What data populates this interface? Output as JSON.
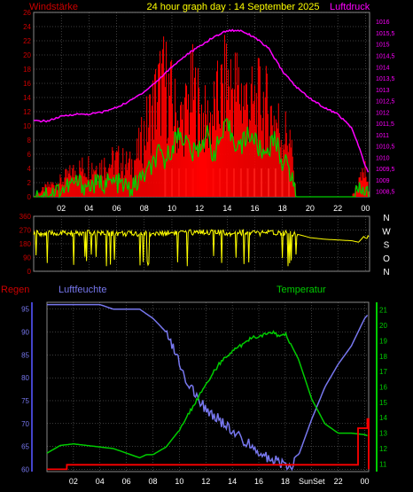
{
  "header": {
    "left_label": "Windstärke",
    "title": "24 hour graph day : 14 September 2025",
    "right_label": "Luftdruck"
  },
  "colors": {
    "wind_gust": "#ff0000",
    "wind_avg": "#00cc00",
    "pressure": "#ff00ff",
    "direction": "#ffff00",
    "humidity": "#7777ee",
    "temperature": "#00cc00",
    "rain": "#ff0000",
    "sun": "#ccffcc",
    "grid": "#999999",
    "axis_label": "#cc0000",
    "right_axis_label": "#ff00ff",
    "temp_axis_label": "#00cc00",
    "hum_axis_label": "#7777ee"
  },
  "chart_data": [
    {
      "type": "line",
      "title": "24 hour graph day : 14 September 2025",
      "ylabel": "Windstärke",
      "y2label": "Luftdruck",
      "xlim": [
        0,
        24.3
      ],
      "ylim": [
        0,
        26
      ],
      "y2lim": [
        1008.25,
        1016.4
      ],
      "x_ticks": [
        "02",
        "04",
        "06",
        "08",
        "10",
        "12",
        "14",
        "16",
        "18",
        "20",
        "22",
        "00"
      ],
      "x_tick_hours": [
        2,
        4,
        6,
        8,
        10,
        12,
        14,
        16,
        18,
        20,
        22,
        24
      ],
      "y_ticks": [
        0,
        2,
        4,
        6,
        8,
        10,
        12,
        14,
        16,
        18,
        20,
        22,
        24,
        26
      ],
      "y2_ticks": [
        "1008,5",
        "1009",
        "1009,5",
        "1010",
        "1010,5",
        "1011",
        "1011,5",
        "1012",
        "1012,5",
        "1013",
        "1013,5",
        "1014",
        "1014,5",
        "1015",
        "1015,5",
        "1016"
      ],
      "grid": true,
      "series": [
        {
          "name": "Windstärke",
          "style": "gust-bars",
          "x": [
            0,
            1,
            2,
            3,
            4,
            5,
            6,
            7,
            7.5,
            8,
            8.5,
            9,
            9.5,
            10,
            10.5,
            11,
            11.5,
            12,
            12.5,
            13,
            13.5,
            14,
            14.5,
            15,
            15.5,
            16,
            16.5,
            17,
            17.5,
            18,
            18.5,
            19,
            20,
            21,
            22,
            23,
            24,
            24.3
          ],
          "values": [
            0,
            2,
            3,
            5,
            6,
            6,
            7,
            6,
            8,
            12,
            16,
            20,
            22,
            18,
            14,
            16,
            20,
            17,
            14,
            16,
            19,
            22,
            21,
            20,
            18,
            17,
            19,
            16,
            15,
            12,
            12,
            0,
            0,
            0,
            0,
            0,
            5,
            0
          ]
        },
        {
          "name": "Wind avg",
          "x": [
            0,
            1,
            2,
            3,
            4,
            5,
            6,
            7,
            7.5,
            8,
            8.5,
            9,
            9.5,
            10,
            10.5,
            11,
            11.5,
            12,
            12.5,
            13,
            13.5,
            14,
            14.5,
            15,
            15.5,
            16,
            16.5,
            17,
            17.5,
            18,
            18.5,
            19,
            20,
            21,
            22,
            23,
            24,
            24.3
          ],
          "values": [
            0,
            0.5,
            1,
            2,
            1.5,
            2,
            2,
            1,
            2,
            3,
            4,
            6,
            5,
            7,
            9,
            8,
            6,
            7,
            9,
            6,
            8,
            10,
            8,
            7,
            9,
            8,
            6,
            7,
            8,
            5,
            4,
            0,
            0,
            0,
            0,
            0,
            1,
            0
          ]
        },
        {
          "name": "Luftdruck",
          "axis": "right",
          "x": [
            0,
            1,
            2,
            3,
            4,
            5,
            6,
            7,
            8,
            9,
            10,
            11,
            12,
            13,
            14,
            15,
            16,
            17,
            18,
            19,
            20,
            21,
            22,
            23,
            23.5,
            24,
            24.3
          ],
          "values": [
            1011.6,
            1011.6,
            1011.8,
            1011.9,
            1011.9,
            1012.0,
            1012.2,
            1012.5,
            1012.9,
            1013.4,
            1014.0,
            1014.5,
            1014.9,
            1015.3,
            1015.6,
            1015.6,
            1015.3,
            1014.8,
            1013.8,
            1013.1,
            1012.6,
            1012.2,
            1011.9,
            1011.3,
            1010.5,
            1009.6,
            1009.2
          ]
        },
        {
          "name": "Sonne",
          "style": "sun-bars",
          "x": [
            9.5,
            10,
            10.5,
            11,
            11.5,
            12,
            12.5,
            13,
            13.5,
            14,
            14.5,
            15,
            15.5,
            16,
            16.5,
            17,
            17.5,
            18,
            18.5
          ],
          "values": [
            4,
            4,
            4,
            4,
            4,
            4,
            4,
            4,
            4,
            4,
            4,
            4,
            4,
            4,
            4,
            4,
            4,
            4,
            4
          ]
        }
      ]
    },
    {
      "type": "line",
      "ylim": [
        0,
        360
      ],
      "y_ticks": [
        0,
        90,
        180,
        270,
        360
      ],
      "right_labels": [
        "N",
        "W",
        "S",
        "O",
        "N"
      ],
      "series": [
        {
          "name": "Windrichtung",
          "x": [
            0,
            1,
            2,
            3,
            4,
            5,
            6,
            7,
            8,
            9,
            10,
            11,
            12,
            13,
            14,
            15,
            16,
            17,
            18,
            19,
            20,
            21,
            22,
            23,
            23.5,
            24,
            24.3
          ],
          "values": [
            250,
            245,
            250,
            245,
            250,
            245,
            250,
            245,
            250,
            245,
            255,
            250,
            260,
            255,
            250,
            255,
            250,
            250,
            255,
            245,
            220,
            210,
            205,
            200,
            190,
            240,
            200
          ]
        }
      ]
    },
    {
      "type": "line",
      "ylabel": "Regen",
      "y2label": "Temperatur",
      "y3label": "Luftfeuchte",
      "xlim": [
        0,
        24.3
      ],
      "hum_lim": [
        59.5,
        96.5
      ],
      "temp_lim": [
        10.5,
        21.5
      ],
      "hum_ticks": [
        60,
        65,
        70,
        75,
        80,
        85,
        90,
        95
      ],
      "temp_ticks": [
        11,
        12,
        13,
        14,
        15,
        16,
        17,
        18,
        19,
        20,
        21
      ],
      "x_ticks": [
        "02",
        "04",
        "06",
        "08",
        "10",
        "12",
        "14",
        "16",
        "18",
        "SunSet",
        "22",
        "00"
      ],
      "x_tick_hours": [
        2,
        4,
        6,
        8,
        10,
        12,
        14,
        16,
        18,
        20,
        22,
        24
      ],
      "series": [
        {
          "name": "Luftfeuchte",
          "x": [
            0,
            1,
            2,
            3,
            4,
            5,
            6,
            7,
            8,
            9,
            10,
            11,
            12,
            13,
            14,
            15,
            16,
            17,
            18,
            18.5,
            19,
            20,
            21,
            22,
            23,
            24,
            24.3
          ],
          "values": [
            96,
            96,
            96,
            96,
            96,
            95,
            95,
            95,
            93,
            90,
            83,
            77,
            73,
            71,
            68,
            66,
            64,
            62,
            61,
            61,
            63,
            71,
            78,
            83,
            87,
            93,
            94
          ]
        },
        {
          "name": "Temperatur",
          "x": [
            0,
            1,
            2,
            3,
            4,
            5,
            6,
            7,
            7.5,
            8,
            9,
            10,
            11,
            12,
            13,
            14,
            15,
            15.5,
            16,
            17,
            17.5,
            18,
            19,
            20,
            21,
            22,
            23,
            24,
            24.3
          ],
          "values": [
            11.7,
            12.2,
            12.3,
            12.2,
            12.1,
            12.0,
            11.7,
            11.4,
            11.6,
            11.6,
            12.1,
            13.2,
            14.7,
            16.2,
            17.5,
            18.3,
            18.9,
            19.2,
            19.3,
            19.6,
            19.3,
            19.5,
            17.8,
            15.2,
            13.6,
            13.0,
            13.0,
            12.9,
            12.8
          ]
        },
        {
          "name": "Regen",
          "x": [
            0,
            1,
            1.5,
            2,
            3,
            4,
            5,
            6,
            7,
            8,
            9,
            10,
            11,
            12,
            13,
            14,
            15,
            16,
            17,
            18,
            19,
            20,
            21,
            22,
            23,
            23.5,
            24,
            24.2,
            24.3
          ],
          "values": [
            60,
            60,
            61,
            61,
            61,
            61,
            61,
            61,
            61,
            61,
            61,
            61,
            61,
            61,
            61,
            61,
            61,
            61,
            61,
            61,
            61,
            61,
            61,
            61,
            61,
            69,
            69,
            71,
            60
          ]
        }
      ]
    }
  ],
  "panel3": {
    "left_label": "Regen",
    "mid_label": "Luftfeuchte",
    "right_label": "Temperatur"
  },
  "panel2": {
    "right_labels": [
      "N",
      "W",
      "S",
      "O",
      "N"
    ]
  }
}
